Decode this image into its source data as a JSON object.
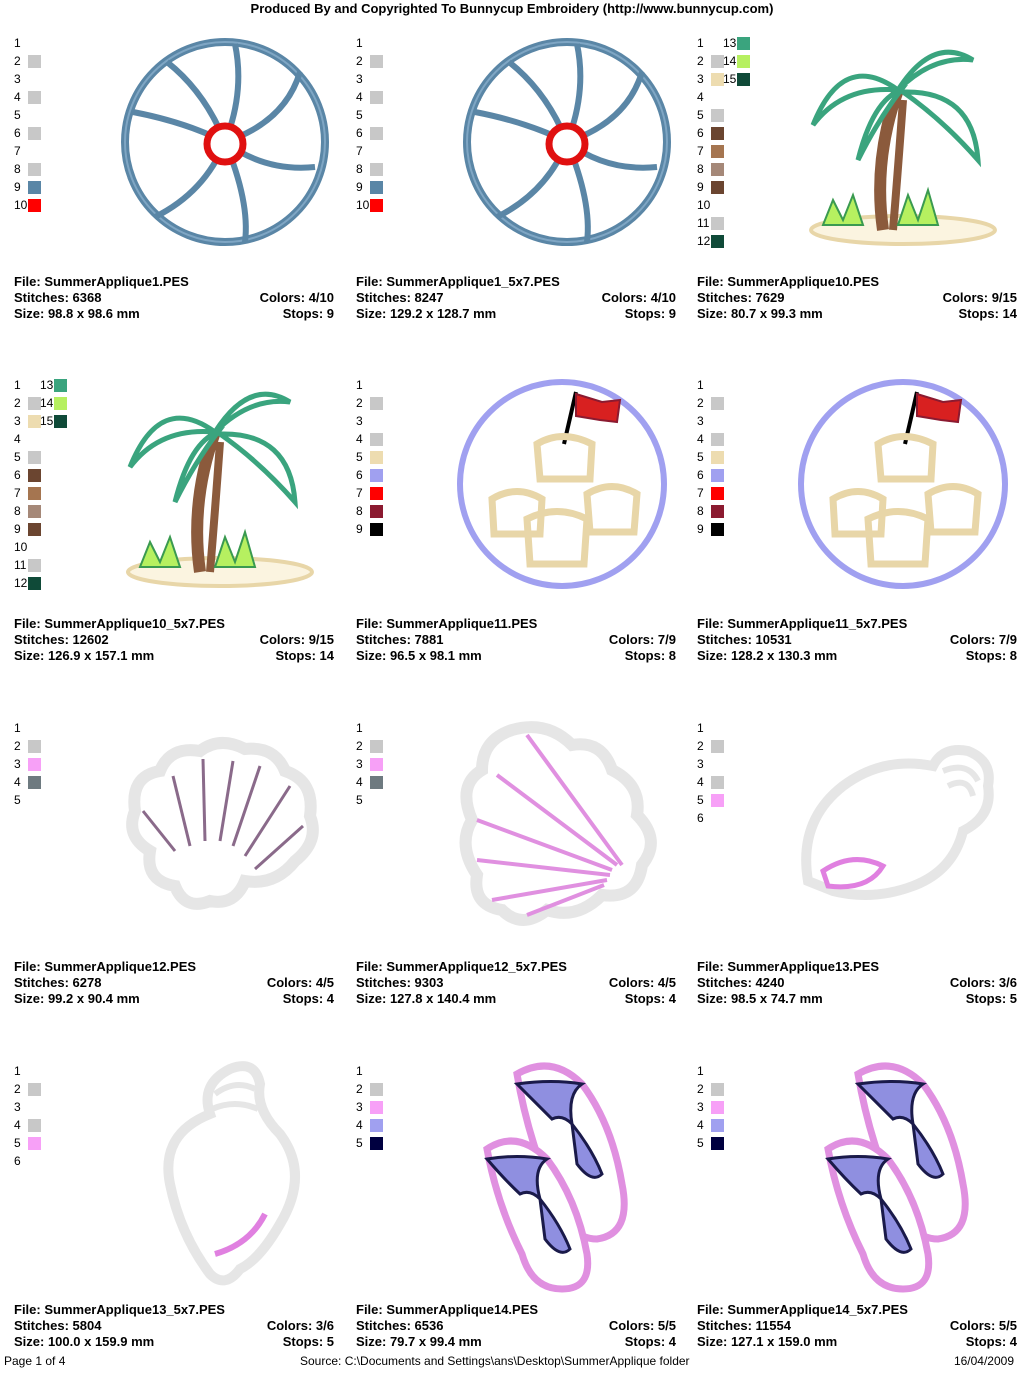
{
  "header": "Produced By and Copyrighted To Bunnycup Embroidery (http://www.bunnycup.com)",
  "labels": {
    "file": "File:",
    "stitches": "Stitches:",
    "colors": "Colors:",
    "size": "Size:",
    "stops": "Stops:"
  },
  "designs": [
    {
      "file": "SummerApplique1.PES",
      "stitches": "6368",
      "colors": "4/10",
      "size": "98.8 x 98.6 mm",
      "stops": "9",
      "art": "ball-icon",
      "swatches": [
        [
          "1",
          ""
        ],
        [
          "2",
          "#c8c8c8"
        ],
        [
          "3",
          ""
        ],
        [
          "4",
          "#c8c8c8"
        ],
        [
          "5",
          ""
        ],
        [
          "6",
          "#c8c8c8"
        ],
        [
          "7",
          ""
        ],
        [
          "8",
          "#c8c8c8"
        ],
        [
          "9",
          "#5a86a6"
        ],
        [
          "10",
          "#ff0000"
        ]
      ],
      "swatches2": []
    },
    {
      "file": "SummerApplique1_5x7.PES",
      "stitches": "8247",
      "colors": "4/10",
      "size": "129.2 x 128.7 mm",
      "stops": "9",
      "art": "ball-icon",
      "swatches": [
        [
          "1",
          ""
        ],
        [
          "2",
          "#c8c8c8"
        ],
        [
          "3",
          ""
        ],
        [
          "4",
          "#c8c8c8"
        ],
        [
          "5",
          ""
        ],
        [
          "6",
          "#c8c8c8"
        ],
        [
          "7",
          ""
        ],
        [
          "8",
          "#c8c8c8"
        ],
        [
          "9",
          "#5a86a6"
        ],
        [
          "10",
          "#ff0000"
        ]
      ],
      "swatches2": []
    },
    {
      "file": "SummerApplique10.PES",
      "stitches": "7629",
      "colors": "9/15",
      "size": "80.7 x 99.3 mm",
      "stops": "14",
      "art": "palm-icon",
      "swatches": [
        [
          "1",
          ""
        ],
        [
          "2",
          "#c8c8c8"
        ],
        [
          "3",
          "#eddcb0"
        ],
        [
          "4",
          ""
        ],
        [
          "5",
          "#c8c8c8"
        ],
        [
          "6",
          "#6b4530"
        ],
        [
          "7",
          "#a57550"
        ],
        [
          "8",
          "#a58878"
        ],
        [
          "9",
          "#6b4530"
        ],
        [
          "10",
          ""
        ],
        [
          "11",
          "#c8c8c8"
        ],
        [
          "12",
          "#0f4a38"
        ]
      ],
      "swatches2": [
        [
          "13",
          "#3aa47e"
        ],
        [
          "14",
          "#b6f060"
        ],
        [
          "15",
          "#0f4a38"
        ]
      ]
    },
    {
      "file": "SummerApplique10_5x7.PES",
      "stitches": "12602",
      "colors": "9/15",
      "size": "126.9 x 157.1 mm",
      "stops": "14",
      "art": "palm-icon",
      "swatches": [
        [
          "1",
          ""
        ],
        [
          "2",
          "#c8c8c8"
        ],
        [
          "3",
          "#eddcb0"
        ],
        [
          "4",
          ""
        ],
        [
          "5",
          "#c8c8c8"
        ],
        [
          "6",
          "#6b4530"
        ],
        [
          "7",
          "#a57550"
        ],
        [
          "8",
          "#a58878"
        ],
        [
          "9",
          "#6b4530"
        ],
        [
          "10",
          ""
        ],
        [
          "11",
          "#c8c8c8"
        ],
        [
          "12",
          "#0f4a38"
        ]
      ],
      "swatches2": [
        [
          "13",
          "#3aa47e"
        ],
        [
          "14",
          "#b6f060"
        ],
        [
          "15",
          "#0f4a38"
        ]
      ]
    },
    {
      "file": "SummerApplique11.PES",
      "stitches": "7881",
      "colors": "7/9",
      "size": "96.5 x 98.1 mm",
      "stops": "8",
      "art": "sandcastle-icon",
      "swatches": [
        [
          "1",
          ""
        ],
        [
          "2",
          "#c8c8c8"
        ],
        [
          "3",
          ""
        ],
        [
          "4",
          "#c8c8c8"
        ],
        [
          "5",
          "#eddcb0"
        ],
        [
          "6",
          "#a0a0f0"
        ],
        [
          "7",
          "#ff0000"
        ],
        [
          "8",
          "#8b1a30"
        ],
        [
          "9",
          "#000000"
        ]
      ],
      "swatches2": []
    },
    {
      "file": "SummerApplique11_5x7.PES",
      "stitches": "10531",
      "colors": "7/9",
      "size": "128.2 x 130.3 mm",
      "stops": "8",
      "art": "sandcastle-icon",
      "swatches": [
        [
          "1",
          ""
        ],
        [
          "2",
          "#c8c8c8"
        ],
        [
          "3",
          ""
        ],
        [
          "4",
          "#c8c8c8"
        ],
        [
          "5",
          "#eddcb0"
        ],
        [
          "6",
          "#a0a0f0"
        ],
        [
          "7",
          "#ff0000"
        ],
        [
          "8",
          "#8b1a30"
        ],
        [
          "9",
          "#000000"
        ]
      ],
      "swatches2": []
    },
    {
      "file": "SummerApplique12.PES",
      "stitches": "6278",
      "colors": "4/5",
      "size": "99.2 x 90.4 mm",
      "stops": "4",
      "art": "scallop-shell-icon",
      "swatches": [
        [
          "1",
          ""
        ],
        [
          "2",
          "#c8c8c8"
        ],
        [
          "3",
          "#f7a0f7"
        ],
        [
          "4",
          "#6e7a80"
        ],
        [
          "5",
          ""
        ]
      ],
      "swatches2": []
    },
    {
      "file": "SummerApplique12_5x7.PES",
      "stitches": "9303",
      "colors": "4/5",
      "size": "127.8 x 140.4 mm",
      "stops": "4",
      "art": "scallop-shell-tilted-icon",
      "swatches": [
        [
          "1",
          ""
        ],
        [
          "2",
          "#c8c8c8"
        ],
        [
          "3",
          "#f7a0f7"
        ],
        [
          "4",
          "#6e7a80"
        ],
        [
          "5",
          ""
        ]
      ],
      "swatches2": []
    },
    {
      "file": "SummerApplique13.PES",
      "stitches": "4240",
      "colors": "3/6",
      "size": "98.5 x 74.7 mm",
      "stops": "5",
      "art": "conch-icon",
      "swatches": [
        [
          "1",
          ""
        ],
        [
          "2",
          "#c8c8c8"
        ],
        [
          "3",
          ""
        ],
        [
          "4",
          "#c8c8c8"
        ],
        [
          "5",
          "#f7a0f7"
        ],
        [
          "6",
          ""
        ]
      ],
      "swatches2": []
    },
    {
      "file": "SummerApplique13_5x7.PES",
      "stitches": "5804",
      "colors": "3/6",
      "size": "100.0 x 159.9 mm",
      "stops": "5",
      "art": "conch-upright-icon",
      "swatches": [
        [
          "1",
          ""
        ],
        [
          "2",
          "#c8c8c8"
        ],
        [
          "3",
          ""
        ],
        [
          "4",
          "#c8c8c8"
        ],
        [
          "5",
          "#f7a0f7"
        ],
        [
          "6",
          ""
        ]
      ],
      "swatches2": []
    },
    {
      "file": "SummerApplique14.PES",
      "stitches": "6536",
      "colors": "5/5",
      "size": "79.7 x 99.4 mm",
      "stops": "4",
      "art": "flip-flops-icon",
      "swatches": [
        [
          "1",
          ""
        ],
        [
          "2",
          "#c8c8c8"
        ],
        [
          "3",
          "#f7a0f7"
        ],
        [
          "4",
          "#a0a0f0"
        ],
        [
          "5",
          "#000040"
        ]
      ],
      "swatches2": []
    },
    {
      "file": "SummerApplique14_5x7.PES",
      "stitches": "11554",
      "colors": "5/5",
      "size": "127.1 x 159.0 mm",
      "stops": "4",
      "art": "flip-flops-icon",
      "swatches": [
        [
          "1",
          ""
        ],
        [
          "2",
          "#c8c8c8"
        ],
        [
          "3",
          "#f7a0f7"
        ],
        [
          "4",
          "#a0a0f0"
        ],
        [
          "5",
          "#000040"
        ]
      ],
      "swatches2": []
    }
  ],
  "footer": {
    "page": "Page 1 of 4",
    "source": "Source: C:\\Documents and Settings\\ans\\Desktop\\SummerApplique folder",
    "date": "16/04/2009"
  }
}
